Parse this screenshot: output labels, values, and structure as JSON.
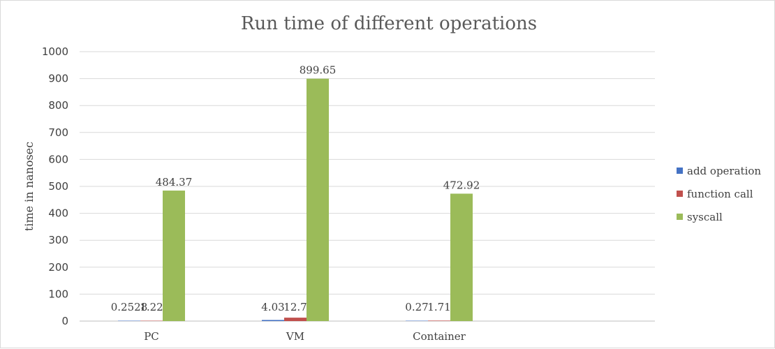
{
  "chart_data": {
    "type": "bar",
    "title": "Run time of different operations",
    "xlabel": "",
    "ylabel": "time in nanosec",
    "categories": [
      "PC",
      "VM",
      "Container"
    ],
    "slots": 4,
    "ylim": [
      0,
      1000
    ],
    "yticks": [
      0,
      100,
      200,
      300,
      400,
      500,
      600,
      700,
      800,
      900,
      1000
    ],
    "grid": true,
    "legend_position": "right",
    "series": [
      {
        "name": "add operation",
        "color": "#4472c4",
        "values": [
          0.2528,
          4.03,
          0.27
        ],
        "labels": [
          "0.2528",
          "4.03",
          "0.27"
        ]
      },
      {
        "name": "function call",
        "color": "#c0504d",
        "values": [
          1.22,
          12.7,
          1.71
        ],
        "labels": [
          "1.22",
          "12.7",
          "1.71"
        ]
      },
      {
        "name": "syscall",
        "color": "#9bbb59",
        "values": [
          484.37,
          899.65,
          472.92
        ],
        "labels": [
          "484.37",
          "899.65",
          "472.92"
        ]
      }
    ]
  }
}
